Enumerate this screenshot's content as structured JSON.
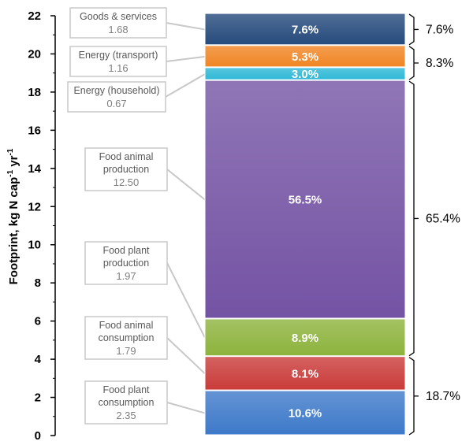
{
  "chart_data": {
    "type": "bar",
    "stacked": true,
    "ylabel": "Footprint, kg N cap",
    "ylabel_sup1": "-1",
    "ylabel_mid": " yr",
    "ylabel_sup2": "-1",
    "ylim": [
      0,
      22
    ],
    "ytick_step": 2,
    "segments": [
      {
        "name_lines": [
          "Food plant",
          "consumption"
        ],
        "value": 2.35,
        "value_label": "2.35",
        "pct_label": "10.6%",
        "color": "#3d79c9"
      },
      {
        "name_lines": [
          "Food animal",
          "consumption"
        ],
        "value": 1.79,
        "value_label": "1.79",
        "pct_label": "8.1%",
        "color": "#c93b39"
      },
      {
        "name_lines": [
          "Food plant",
          "production"
        ],
        "value": 1.97,
        "value_label": "1.97",
        "pct_label": "8.9%",
        "color": "#8db33c"
      },
      {
        "name_lines": [
          "Food animal",
          "production"
        ],
        "value": 12.5,
        "value_label": "12.50",
        "pct_label": "56.5%",
        "color": "#7453a4"
      },
      {
        "name_lines": [
          "Energy (household)"
        ],
        "value": 0.67,
        "value_label": "0.67",
        "pct_label": "3.0%",
        "color": "#2eb8d6"
      },
      {
        "name_lines": [
          "Energy (transport)"
        ],
        "value": 1.16,
        "value_label": "1.16",
        "pct_label": "5.3%",
        "color": "#f08524"
      },
      {
        "name_lines": [
          "Goods & services"
        ],
        "value": 1.68,
        "value_label": "1.68",
        "pct_label": "7.6%",
        "color": "#254a7c"
      }
    ],
    "groups": [
      {
        "label": "18.7%",
        "from_segment": 0,
        "to_segment": 1
      },
      {
        "label": "65.4%",
        "from_segment": 2,
        "to_segment": 3
      },
      {
        "label": "8.3%",
        "from_segment": 4,
        "to_segment": 5
      },
      {
        "label": "7.6%",
        "from_segment": 6,
        "to_segment": 6
      }
    ]
  }
}
